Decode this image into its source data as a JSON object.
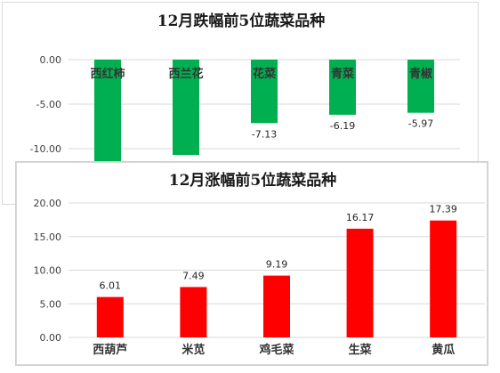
{
  "chart_data": [
    {
      "type": "bar",
      "title": "12月跌幅前5位蔬菜品种",
      "categories": [
        "西红柿",
        "西兰花",
        "花菜",
        "青菜",
        "青椒"
      ],
      "values": [
        -11.9,
        -10.7,
        -7.13,
        -6.19,
        -5.97
      ],
      "data_labels": [
        "",
        "",
        "-7.13",
        "-6.19",
        "-5.97"
      ],
      "y_ticks": [
        "0.00",
        "-5.00",
        "-10.00"
      ],
      "ylim": [
        -12,
        0
      ],
      "bar_color": "#00b050",
      "grid": true,
      "xlabel": "",
      "ylabel": ""
    },
    {
      "type": "bar",
      "title": "12月涨幅前5位蔬菜品种",
      "categories": [
        "西葫芦",
        "米苋",
        "鸡毛菜",
        "生菜",
        "黄瓜"
      ],
      "values": [
        6.01,
        7.49,
        9.19,
        16.17,
        17.39
      ],
      "data_labels": [
        "6.01",
        "7.49",
        "9.19",
        "16.17",
        "17.39"
      ],
      "y_ticks": [
        "0.00",
        "5.00",
        "10.00",
        "15.00",
        "20.00"
      ],
      "ylim": [
        0,
        20
      ],
      "bar_color": "#ff0000",
      "grid": true,
      "xlabel": "",
      "ylabel": ""
    }
  ]
}
